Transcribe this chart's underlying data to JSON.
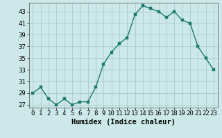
{
  "x": [
    0,
    1,
    2,
    3,
    4,
    5,
    6,
    7,
    8,
    9,
    10,
    11,
    12,
    13,
    14,
    15,
    16,
    17,
    18,
    19,
    20,
    21,
    22,
    23
  ],
  "y": [
    29,
    30,
    28,
    27,
    28,
    27,
    27.5,
    27.5,
    30,
    34,
    36,
    37.5,
    38.5,
    42.5,
    44,
    43.5,
    43,
    42,
    43,
    41.5,
    41,
    37,
    35,
    33
  ],
  "line_color": "#1a7a6e",
  "marker_color": "#1a7a6e",
  "bg_color": "#cce8e8",
  "grid_color": "#aacccc",
  "xlabel": "Humidex (Indice chaleur)",
  "ylabel": "",
  "xlim": [
    -0.5,
    23.5
  ],
  "ylim": [
    26.5,
    44.5
  ],
  "yticks": [
    27,
    29,
    31,
    33,
    35,
    37,
    39,
    41,
    43
  ],
  "xtick_labels": [
    "0",
    "1",
    "2",
    "3",
    "4",
    "5",
    "6",
    "7",
    "8",
    "9",
    "10",
    "11",
    "12",
    "13",
    "14",
    "15",
    "16",
    "17",
    "18",
    "19",
    "20",
    "21",
    "22",
    "23"
  ],
  "xlabel_fontsize": 7.5,
  "tick_fontsize": 6.5,
  "line_width": 1.0,
  "marker_size": 2.5
}
